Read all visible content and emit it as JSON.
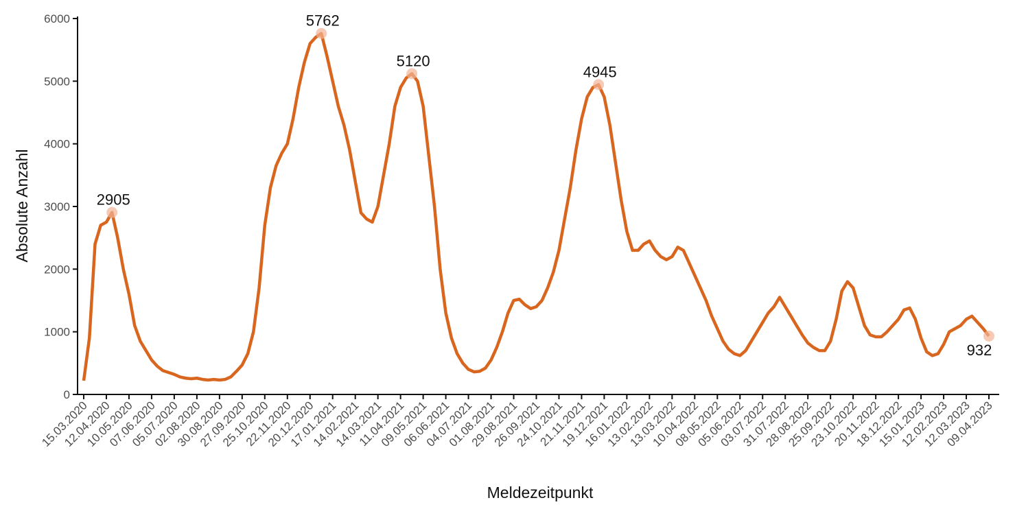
{
  "chart_data": {
    "type": "line",
    "x_label": "Meldezeitpunkt",
    "y_label": "Absolute Anzahl",
    "x": [
      "15.03.2020",
      "22.03.2020",
      "29.03.2020",
      "05.04.2020",
      "12.04.2020",
      "19.04.2020",
      "26.04.2020",
      "03.05.2020",
      "10.05.2020",
      "17.05.2020",
      "24.05.2020",
      "31.05.2020",
      "07.06.2020",
      "14.06.2020",
      "21.06.2020",
      "28.06.2020",
      "05.07.2020",
      "12.07.2020",
      "19.07.2020",
      "26.07.2020",
      "02.08.2020",
      "09.08.2020",
      "16.08.2020",
      "23.08.2020",
      "30.08.2020",
      "06.09.2020",
      "13.09.2020",
      "20.09.2020",
      "27.09.2020",
      "04.10.2020",
      "11.10.2020",
      "18.10.2020",
      "25.10.2020",
      "01.11.2020",
      "08.11.2020",
      "15.11.2020",
      "22.11.2020",
      "29.11.2020",
      "06.12.2020",
      "13.12.2020",
      "20.12.2020",
      "27.12.2020",
      "03.01.2021",
      "10.01.2021",
      "17.01.2021",
      "24.01.2021",
      "31.01.2021",
      "07.02.2021",
      "14.02.2021",
      "21.02.2021",
      "28.02.2021",
      "07.03.2021",
      "14.03.2021",
      "21.03.2021",
      "28.03.2021",
      "04.04.2021",
      "11.04.2021",
      "18.04.2021",
      "25.04.2021",
      "02.05.2021",
      "09.05.2021",
      "16.05.2021",
      "23.05.2021",
      "30.05.2021",
      "06.06.2021",
      "13.06.2021",
      "20.06.2021",
      "27.06.2021",
      "04.07.2021",
      "11.07.2021",
      "18.07.2021",
      "25.07.2021",
      "01.08.2021",
      "08.08.2021",
      "15.08.2021",
      "22.08.2021",
      "29.08.2021",
      "05.09.2021",
      "12.09.2021",
      "19.09.2021",
      "26.09.2021",
      "03.10.2021",
      "10.10.2021",
      "17.10.2021",
      "24.10.2021",
      "31.10.2021",
      "07.11.2021",
      "14.11.2021",
      "21.11.2021",
      "28.11.2021",
      "05.12.2021",
      "12.12.2021",
      "19.12.2021",
      "26.12.2021",
      "02.01.2022",
      "09.01.2022",
      "16.01.2022",
      "23.01.2022",
      "30.01.2022",
      "06.02.2022",
      "13.02.2022",
      "20.02.2022",
      "27.02.2022",
      "06.03.2022",
      "13.03.2022",
      "20.03.2022",
      "27.03.2022",
      "03.04.2022",
      "10.04.2022",
      "17.04.2022",
      "24.04.2022",
      "01.05.2022",
      "08.05.2022",
      "15.05.2022",
      "22.05.2022",
      "29.05.2022",
      "05.06.2022",
      "12.06.2022",
      "19.06.2022",
      "26.06.2022",
      "03.07.2022",
      "10.07.2022",
      "17.07.2022",
      "24.07.2022",
      "31.07.2022",
      "07.08.2022",
      "14.08.2022",
      "21.08.2022",
      "28.08.2022",
      "04.09.2022",
      "11.09.2022",
      "18.09.2022",
      "25.09.2022",
      "02.10.2022",
      "09.10.2022",
      "16.10.2022",
      "23.10.2022",
      "30.10.2022",
      "06.11.2022",
      "13.11.2022",
      "20.11.2022",
      "27.11.2022",
      "04.12.2022",
      "11.12.2022",
      "18.12.2022",
      "25.12.2022",
      "01.01.2023",
      "08.01.2023",
      "15.01.2023",
      "22.01.2023",
      "29.01.2023",
      "05.02.2023",
      "12.02.2023",
      "19.02.2023",
      "26.02.2023",
      "05.03.2023",
      "12.03.2023",
      "19.03.2023",
      "26.03.2023",
      "02.04.2023",
      "09.04.2023"
    ],
    "values": [
      220,
      900,
      2400,
      2700,
      2750,
      2905,
      2500,
      2000,
      1600,
      1100,
      850,
      700,
      550,
      450,
      380,
      350,
      320,
      280,
      260,
      250,
      260,
      240,
      230,
      240,
      230,
      240,
      280,
      370,
      470,
      650,
      1000,
      1700,
      2700,
      3300,
      3650,
      3850,
      4000,
      4400,
      4900,
      5300,
      5600,
      5700,
      5762,
      5400,
      5000,
      4600,
      4300,
      3900,
      3400,
      2900,
      2800,
      2750,
      3000,
      3500,
      4000,
      4600,
      4900,
      5050,
      5120,
      5000,
      4600,
      3800,
      3000,
      2000,
      1300,
      900,
      650,
      500,
      400,
      360,
      370,
      420,
      550,
      750,
      1000,
      1300,
      1500,
      1520,
      1430,
      1370,
      1400,
      1500,
      1700,
      1950,
      2300,
      2800,
      3300,
      3900,
      4400,
      4750,
      4900,
      4945,
      4750,
      4300,
      3700,
      3100,
      2600,
      2300,
      2300,
      2400,
      2450,
      2300,
      2200,
      2150,
      2200,
      2350,
      2300,
      2100,
      1900,
      1700,
      1500,
      1250,
      1050,
      850,
      720,
      650,
      620,
      700,
      850,
      1000,
      1150,
      1300,
      1400,
      1550,
      1400,
      1250,
      1100,
      950,
      820,
      750,
      700,
      700,
      850,
      1200,
      1650,
      1800,
      1700,
      1400,
      1100,
      950,
      920,
      920,
      1000,
      1100,
      1200,
      1350,
      1380,
      1200,
      900,
      680,
      620,
      650,
      800,
      1000,
      1050,
      1100,
      1200,
      1250,
      1150,
      1050,
      932
    ],
    "color": "#d9661f",
    "labeled_points": [
      5,
      42,
      58,
      91,
      160
    ],
    "xlim": [
      "15.03.2020",
      "09.04.2023"
    ],
    "xticks": [
      "15.03.2020",
      "12.04.2020",
      "10.05.2020",
      "07.06.2020",
      "05.07.2020",
      "02.08.2020",
      "30.08.2020",
      "27.09.2020",
      "25.10.2020",
      "22.11.2020",
      "20.12.2020",
      "17.01.2021",
      "14.02.2021",
      "14.03.2021",
      "11.04.2021",
      "09.05.2021",
      "06.06.2021",
      "04.07.2021",
      "01.08.2021",
      "29.08.2021",
      "26.09.2021",
      "24.10.2021",
      "21.11.2021",
      "19.12.2021",
      "16.01.2022",
      "13.02.2022",
      "13.03.2022",
      "10.04.2022",
      "08.05.2022",
      "05.06.2022",
      "03.07.2022",
      "31.07.2022",
      "28.08.2022",
      "25.09.2022",
      "23.10.2022",
      "20.11.2022",
      "18.12.2022",
      "15.01.2023",
      "12.02.2023",
      "12.03.2023",
      "09.04.2023"
    ],
    "ylim": [
      0,
      6000
    ],
    "yticks": [
      0,
      1000,
      2000,
      3000,
      4000,
      5000,
      6000
    ],
    "grid": false
  }
}
